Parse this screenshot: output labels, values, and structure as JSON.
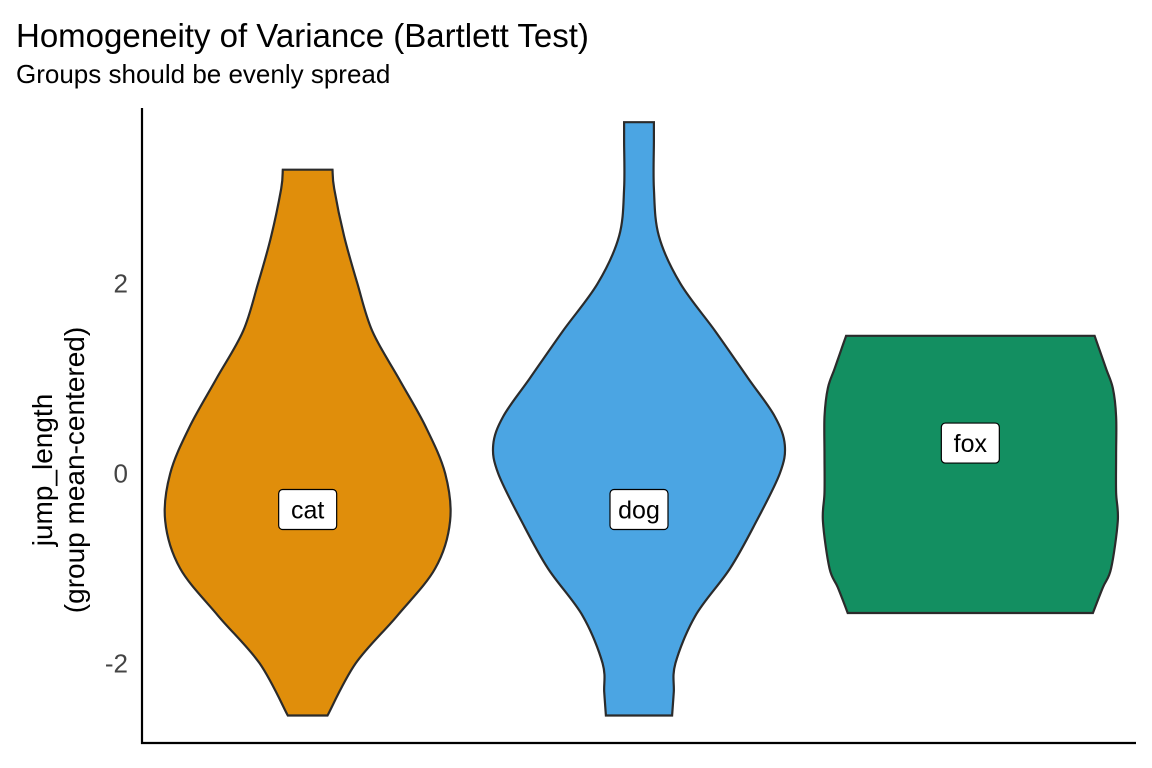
{
  "chart_data": {
    "type": "violin",
    "title": "Homogeneity of Variance (Bartlett Test)",
    "subtitle": "Groups should be evenly spread",
    "ylabel_lines": [
      "jump_length",
      "(group mean-centered)"
    ],
    "xlabel": "",
    "ylim": [
      -2.85,
      3.85
    ],
    "y_ticks": [
      -2,
      0,
      2
    ],
    "categories": [
      "cat",
      "dog",
      "fox"
    ],
    "series": [
      {
        "category": "cat",
        "color": "#E08E0B",
        "label_y": -0.38,
        "profile": [
          [
            -2.55,
            0.12
          ],
          [
            -2.0,
            0.29
          ],
          [
            -1.5,
            0.54
          ],
          [
            -1.0,
            0.77
          ],
          [
            -0.5,
            0.86
          ],
          [
            0.0,
            0.83
          ],
          [
            0.5,
            0.71
          ],
          [
            1.0,
            0.55
          ],
          [
            1.5,
            0.39
          ],
          [
            2.0,
            0.3
          ],
          [
            2.5,
            0.22
          ],
          [
            3.0,
            0.16
          ],
          [
            3.2,
            0.15
          ]
        ]
      },
      {
        "category": "dog",
        "color": "#4BA5E3",
        "label_y": -0.38,
        "profile": [
          [
            -2.55,
            0.2
          ],
          [
            -2.3,
            0.21
          ],
          [
            -2.0,
            0.22
          ],
          [
            -1.5,
            0.34
          ],
          [
            -1.0,
            0.55
          ],
          [
            -0.5,
            0.71
          ],
          [
            0.0,
            0.85
          ],
          [
            0.3,
            0.88
          ],
          [
            0.6,
            0.82
          ],
          [
            1.0,
            0.66
          ],
          [
            1.5,
            0.46
          ],
          [
            2.0,
            0.25
          ],
          [
            2.5,
            0.12
          ],
          [
            3.0,
            0.09
          ],
          [
            3.5,
            0.09
          ],
          [
            3.7,
            0.09
          ]
        ]
      },
      {
        "category": "fox",
        "color": "#138F61",
        "label_y": 0.32,
        "profile": [
          [
            -1.47,
            0.74
          ],
          [
            -1.2,
            0.8
          ],
          [
            -1.0,
            0.85
          ],
          [
            -0.5,
            0.89
          ],
          [
            -0.2,
            0.88
          ],
          [
            0.2,
            0.88
          ],
          [
            0.6,
            0.88
          ],
          [
            0.9,
            0.86
          ],
          [
            1.1,
            0.82
          ],
          [
            1.3,
            0.78
          ],
          [
            1.45,
            0.75
          ]
        ]
      }
    ]
  }
}
